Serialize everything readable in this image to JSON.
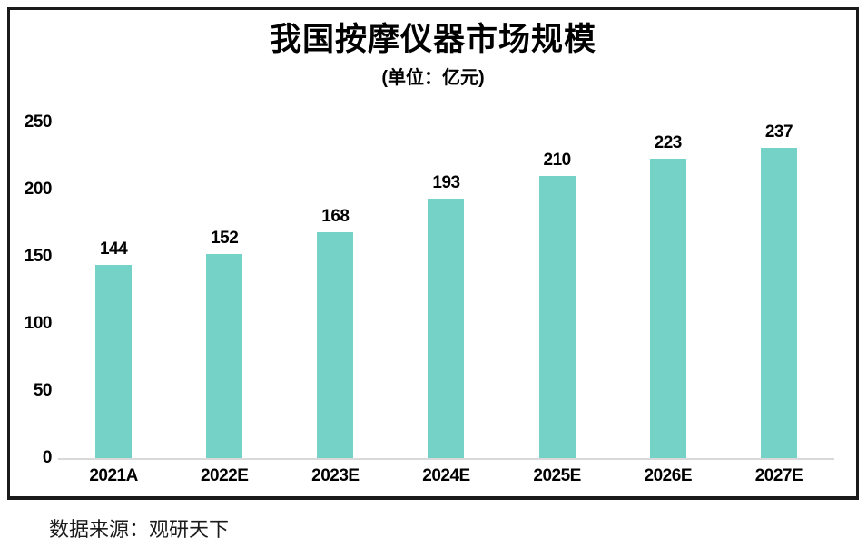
{
  "chart_data": {
    "type": "bar",
    "title": "我国按摩仪器市场规模",
    "subtitle": "(单位：亿元)",
    "categories": [
      "2021A",
      "2022E",
      "2023E",
      "2024E",
      "2025E",
      "2026E",
      "2027E"
    ],
    "values": [
      144,
      152,
      168,
      193,
      210,
      223,
      237
    ],
    "ylabel": "",
    "xlabel": "",
    "ylim": [
      0,
      250
    ],
    "yticks": [
      0,
      50,
      100,
      150,
      200,
      250
    ],
    "grid": false,
    "legend": "none",
    "bar_color": "#74d3c6",
    "axis_line_color": "#d9d9d9",
    "frame_color": "#1a1a1a",
    "text_color": "#000000",
    "source": "数据来源：观研天下"
  }
}
